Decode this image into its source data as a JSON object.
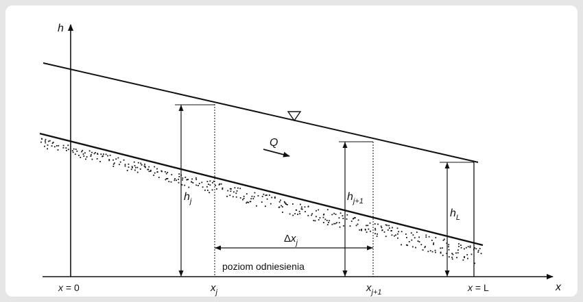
{
  "axes": {
    "y_label": "h",
    "x_label": "x"
  },
  "labels": {
    "h_j": {
      "base": "h",
      "sub": "j"
    },
    "h_j1": {
      "base": "h",
      "sub": "j+1"
    },
    "h_L": {
      "base": "h",
      "sub": "L"
    },
    "flow": "Q",
    "delta_x": {
      "prefix": "Δ",
      "base": "x",
      "sub": "j"
    },
    "datum": "poziom odniesienia",
    "x0": {
      "var": "x",
      "rest": " = 0"
    },
    "xj": {
      "base": "x",
      "sub": "j"
    },
    "xj1": {
      "base": "x",
      "sub": "j+1"
    },
    "xL": {
      "var": "x",
      "rest": " = L"
    }
  },
  "colors": {
    "line": "#111111",
    "frame_bg": "#e6e6e6",
    "panel": "#ffffff"
  },
  "icons": {
    "water_surface_marker": "inverted-triangle",
    "flow_arrow": "arrow-down-right"
  }
}
